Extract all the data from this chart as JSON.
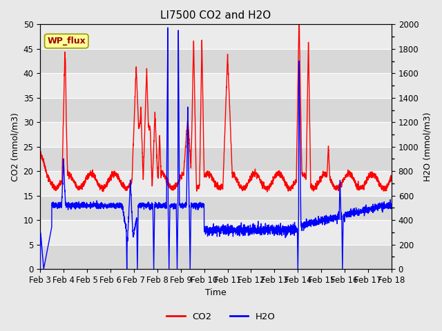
{
  "title": "LI7500 CO2 and H2O",
  "xlabel": "Time",
  "ylabel_left": "CO2 (mmol/m3)",
  "ylabel_right": "H2O (mmol/m3)",
  "ylim_left": [
    0,
    50
  ],
  "ylim_right": [
    0,
    2000
  ],
  "yticks_left": [
    0,
    5,
    10,
    15,
    20,
    25,
    30,
    35,
    40,
    45,
    50
  ],
  "yticks_right": [
    0,
    200,
    400,
    600,
    800,
    1000,
    1200,
    1400,
    1600,
    1800,
    2000
  ],
  "xtick_labels": [
    "Feb 3",
    "Feb 4",
    "Feb 5",
    "Feb 6",
    "Feb 7",
    "Feb 8",
    "Feb 9",
    "Feb 10",
    "Feb 11",
    "Feb 12",
    "Feb 13",
    "Feb 14",
    "Feb 15",
    "Feb 16",
    "Feb 17",
    "Feb 18"
  ],
  "co2_color": "#ff0000",
  "h2o_color": "#0000ff",
  "fig_bg_color": "#e8e8e8",
  "band_light": "#ebebeb",
  "band_dark": "#d8d8d8",
  "annotation_text": "WP_flux",
  "annotation_bg": "#ffff99",
  "annotation_border": "#999900",
  "legend_co2": "CO2",
  "legend_h2o": "H2O",
  "title_fontsize": 11,
  "axis_fontsize": 9,
  "tick_fontsize": 8.5,
  "linewidth": 1.0
}
